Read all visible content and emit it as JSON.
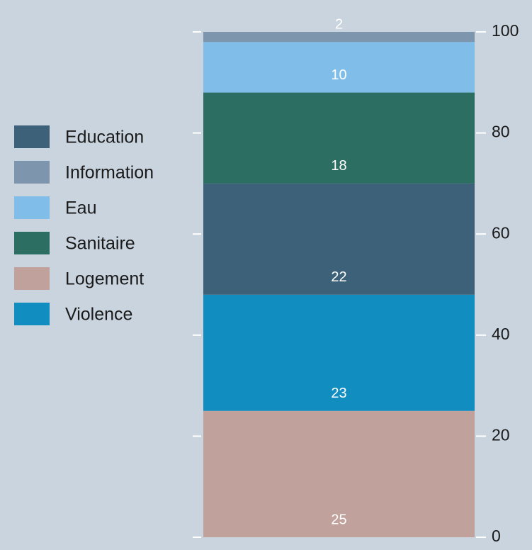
{
  "chart_data": {
    "type": "stacked-bar",
    "series": [
      {
        "name": "Education",
        "color": "#3d6179",
        "values": [
          22
        ]
      },
      {
        "name": "Information",
        "color": "#7d96ad",
        "values": [
          2
        ]
      },
      {
        "name": "Eau",
        "color": "#80bee9",
        "values": [
          10
        ]
      },
      {
        "name": "Sanitaire",
        "color": "#2d6e62",
        "values": [
          18
        ]
      },
      {
        "name": "Logement",
        "color": "#c0a19b",
        "values": [
          25
        ]
      },
      {
        "name": "Violence",
        "color": "#118dc0",
        "values": [
          23
        ]
      }
    ],
    "ylim": [
      0,
      100
    ],
    "yticks": [
      0,
      20,
      40,
      60,
      80,
      100
    ],
    "legend": "left"
  }
}
